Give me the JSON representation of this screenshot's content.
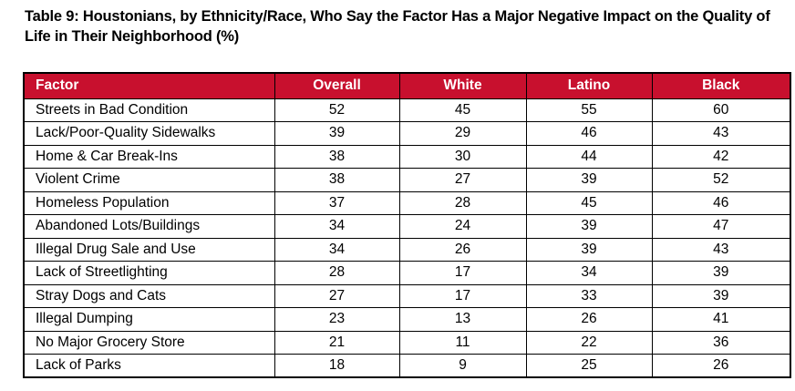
{
  "title": "Table 9: Houstonians, by Ethnicity/Race, Who Say the Factor Has a Major Negative Impact on the Quality of Life in Their Neighborhood (%)",
  "colors": {
    "header_bg": "#C8102E",
    "header_text": "#FFFFFF",
    "border": "#000000",
    "body_text": "#000000"
  },
  "table": {
    "columns": [
      "Factor",
      "Overall",
      "White",
      "Latino",
      "Black"
    ],
    "rows": [
      {
        "factor": "Streets in Bad Condition",
        "values": [
          52,
          45,
          55,
          60
        ]
      },
      {
        "factor": "Lack/Poor-Quality Sidewalks",
        "values": [
          39,
          29,
          46,
          43
        ]
      },
      {
        "factor": "Home & Car Break-Ins",
        "values": [
          38,
          30,
          44,
          42
        ]
      },
      {
        "factor": "Violent Crime",
        "values": [
          38,
          27,
          39,
          52
        ]
      },
      {
        "factor": "Homeless Population",
        "values": [
          37,
          28,
          45,
          46
        ]
      },
      {
        "factor": "Abandoned Lots/Buildings",
        "values": [
          34,
          24,
          39,
          47
        ]
      },
      {
        "factor": "Illegal Drug Sale and Use",
        "values": [
          34,
          26,
          39,
          43
        ]
      },
      {
        "factor": "Lack of Streetlighting",
        "values": [
          28,
          17,
          34,
          39
        ]
      },
      {
        "factor": "Stray Dogs and Cats",
        "values": [
          27,
          17,
          33,
          39
        ]
      },
      {
        "factor": "Illegal Dumping",
        "values": [
          23,
          13,
          26,
          41
        ]
      },
      {
        "factor": "No Major Grocery Store",
        "values": [
          21,
          11,
          22,
          36
        ]
      },
      {
        "factor": "Lack of Parks",
        "values": [
          18,
          9,
          25,
          26
        ]
      }
    ]
  }
}
